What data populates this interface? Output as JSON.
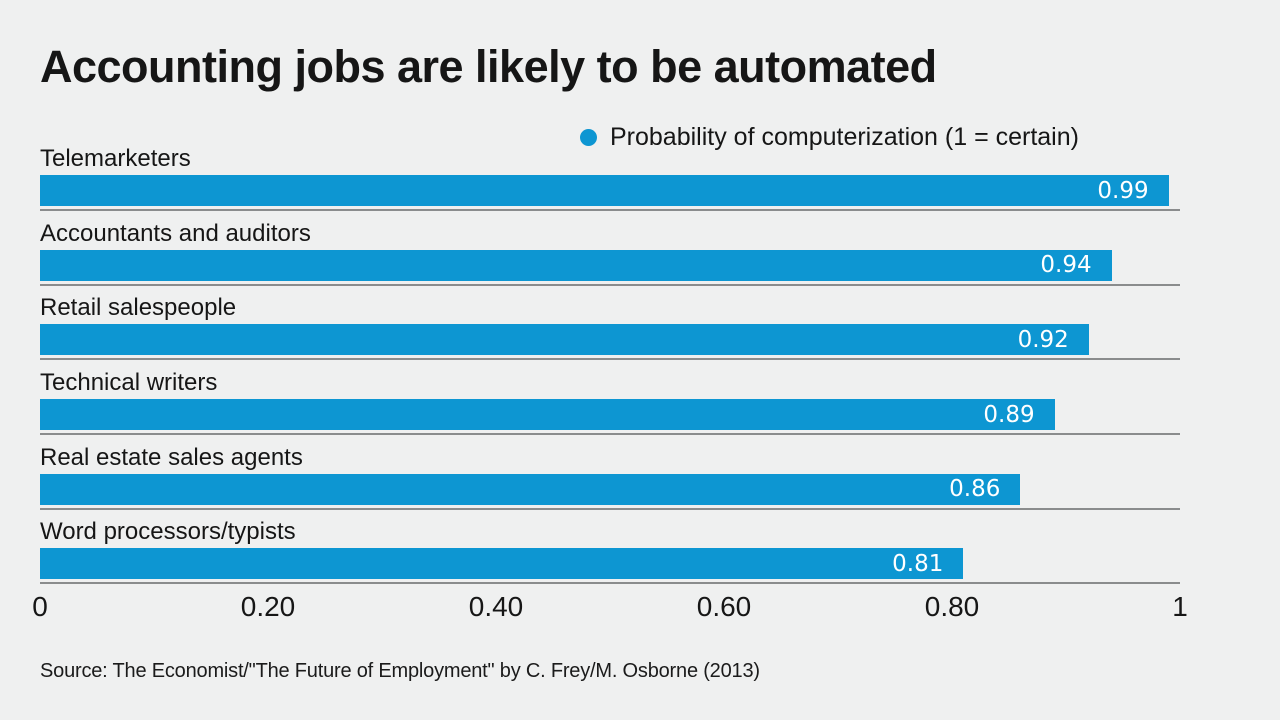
{
  "title": "Accounting jobs are likely to be automated",
  "legend": {
    "label": "Probability of computerization (1 = certain)"
  },
  "source": "Source: The Economist/\"The Future of Employment\" by C. Frey/M. Osborne (2013)",
  "colors": {
    "background": "#eff0f0",
    "bar": "#0d96d2",
    "divider_line": "#8a8c8d",
    "text": "#161616",
    "value_text": "#ffffff"
  },
  "chart_data": {
    "type": "bar",
    "orientation": "horizontal",
    "title": "Accounting jobs are likely to be automated",
    "legend_entries": [
      "Probability of computerization (1 = certain)"
    ],
    "legend_position": "top-right",
    "categories": [
      "Telemarketers",
      "Accountants and auditors",
      "Retail salespeople",
      "Technical writers",
      "Real estate sales agents",
      "Word processors/typists"
    ],
    "values": [
      0.99,
      0.94,
      0.92,
      0.89,
      0.86,
      0.81
    ],
    "value_labels": [
      "0.99",
      "0.94",
      "0.92",
      "0.89",
      "0.86",
      "0.81"
    ],
    "xlabel": "",
    "ylabel": "",
    "xlim": [
      0,
      1
    ],
    "x_ticks": [
      {
        "value": 0,
        "label": "0"
      },
      {
        "value": 0.2,
        "label": "0.20"
      },
      {
        "value": 0.4,
        "label": "0.40"
      },
      {
        "value": 0.6,
        "label": "0.60"
      },
      {
        "value": 0.8,
        "label": "0.80"
      },
      {
        "value": 1,
        "label": "1"
      }
    ],
    "grid": "horizontal divider line under each bar",
    "source": "Source: The Economist/\"The Future of Employment\" by C. Frey/M. Osborne (2013)"
  }
}
